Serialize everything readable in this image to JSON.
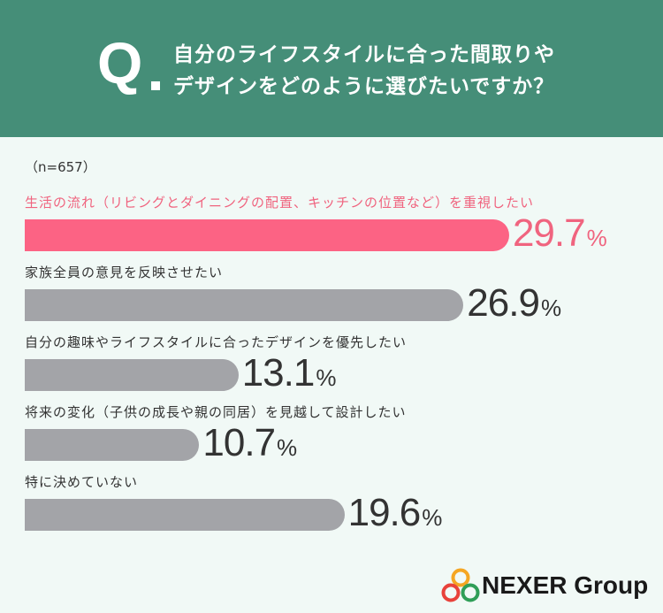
{
  "header": {
    "q_mark": "Q",
    "question_line1": "自分のライフスタイルに合った間取りや",
    "question_line2": "デザインをどのように選びたいですか？",
    "bg_color": "#458e78"
  },
  "sample_size_label": "（n=657）",
  "chart_data": {
    "type": "bar",
    "orientation": "horizontal",
    "categories": [
      "生活の流れ（リビングとダイニングの配置、キッチンの位置など）を重視したい",
      "家族全員の意見を反映させたい",
      "自分の趣味やライフスタイルに合ったデザインを優先したい",
      "将来の変化（子供の成長や親の同居）を見越して設計したい",
      "特に決めていない"
    ],
    "values": [
      29.7,
      26.9,
      13.1,
      10.7,
      19.6
    ],
    "value_labels": [
      "29.7",
      "26.9",
      "13.1",
      "10.7",
      "19.6"
    ],
    "unit": "%",
    "highlight_index": 0,
    "colors": {
      "highlight": "#fc6384",
      "default": "#a3a4a8",
      "highlight_text": "#f0647f"
    }
  },
  "logo": {
    "text": "NEXER Group",
    "icon": "nexer-circles-logo"
  }
}
